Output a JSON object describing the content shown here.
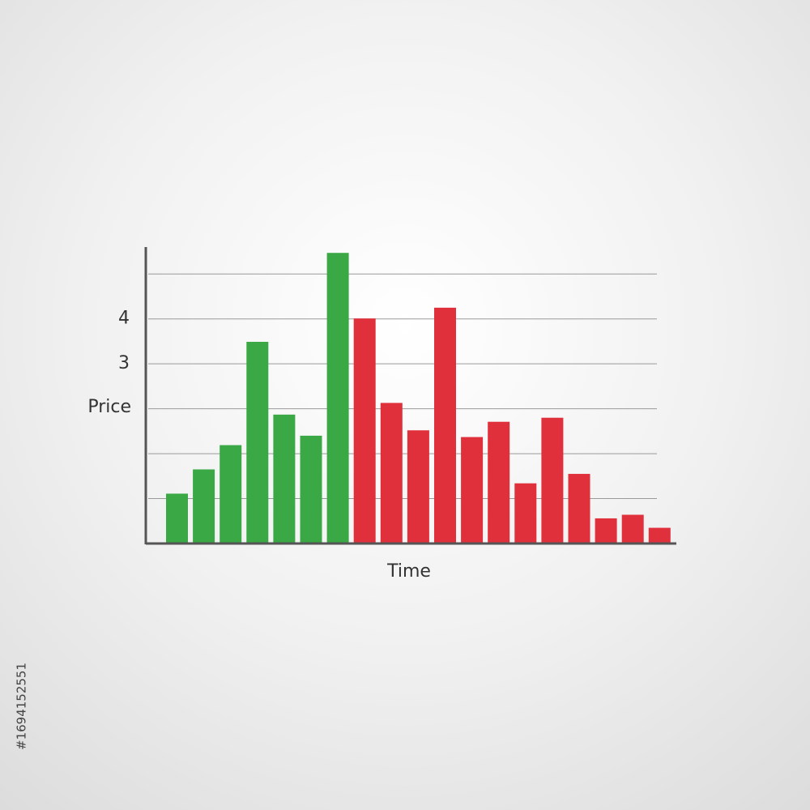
{
  "chart_data": {
    "type": "bar",
    "x_label": "Time",
    "y_label": "Price",
    "values": [
      0.11,
      0.65,
      1.19,
      3.49,
      1.87,
      1.4,
      5.47,
      4.01,
      2.13,
      1.52,
      4.25,
      1.37,
      1.71,
      0.34,
      1.8,
      0.55,
      -0.44,
      -0.36,
      -0.65
    ],
    "colors": [
      "#3aa845",
      "#3aa845",
      "#3aa845",
      "#3aa845",
      "#3aa845",
      "#3aa845",
      "#3aa845",
      "#e0303c",
      "#e0303c",
      "#e0303c",
      "#e0303c",
      "#e0303c",
      "#e0303c",
      "#e0303c",
      "#e0303c",
      "#e0303c",
      "#e0303c",
      "#e0303c",
      "#e0303c"
    ],
    "ylim": [
      -1,
      5.6
    ],
    "yticks": [
      3,
      4
    ],
    "grid_lines": [
      0,
      1,
      2,
      3,
      4,
      5
    ],
    "grid": true
  },
  "stock_id": "#1694152551"
}
